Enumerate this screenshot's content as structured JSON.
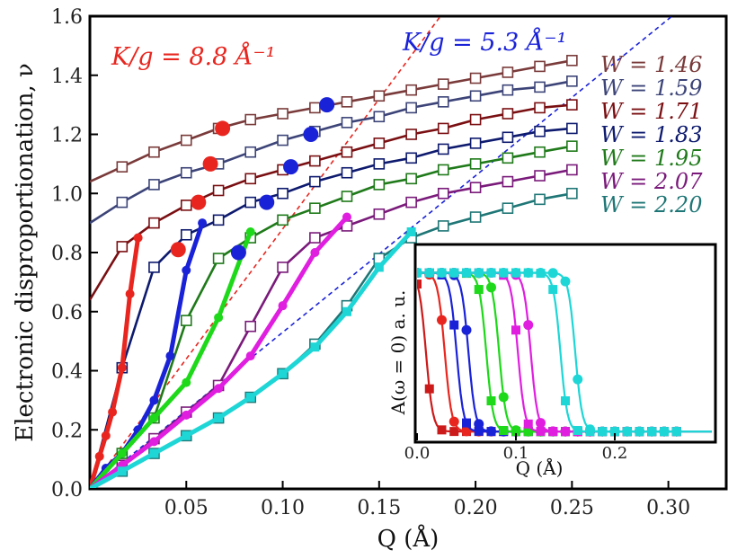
{
  "chart_data": [
    {
      "type": "line",
      "ylabel": "Electronic disproportionation, ν",
      "xlabel": "Q (Å)",
      "xlim": [
        0.0,
        0.33
      ],
      "ylim": [
        0.0,
        1.6
      ],
      "xticks": [
        0.05,
        0.1,
        0.15,
        0.2,
        0.25,
        0.3
      ],
      "xtick_labels": [
        "0.05",
        "0.10",
        "0.15",
        "0.20",
        "0.25",
        "0.30"
      ],
      "yticks": [
        0.0,
        0.2,
        0.4,
        0.6,
        0.8,
        1.0,
        1.2,
        1.4,
        1.6
      ],
      "ytick_labels": [
        "0.0",
        "0.2",
        "0.4",
        "0.6",
        "0.8",
        "1.0",
        "1.2",
        "1.4",
        "1.6"
      ],
      "annotations": [
        {
          "text": "K/g = 8.8 Å⁻¹",
          "color": "#e8261f",
          "slope": 8.8
        },
        {
          "text": "K/g = 5.3 Å⁻¹",
          "color": "#1a22d8",
          "slope": 5.3
        }
      ],
      "series": [
        {
          "name": "W = 1.46",
          "color": "#7a3a3a",
          "marker": "open-square",
          "x": [
            0.0,
            0.0167,
            0.0333,
            0.05,
            0.0667,
            0.0833,
            0.1,
            0.1167,
            0.1333,
            0.15,
            0.1667,
            0.1833,
            0.2,
            0.2167,
            0.2333,
            0.25
          ],
          "y": [
            1.04,
            1.09,
            1.14,
            1.18,
            1.22,
            1.25,
            1.27,
            1.29,
            1.31,
            1.33,
            1.35,
            1.37,
            1.39,
            1.41,
            1.43,
            1.45
          ]
        },
        {
          "name": "W = 1.59",
          "color": "#3c4478",
          "marker": "open-square",
          "x": [
            0.0,
            0.0167,
            0.0333,
            0.05,
            0.0667,
            0.0833,
            0.1,
            0.1167,
            0.1333,
            0.15,
            0.1667,
            0.1833,
            0.2,
            0.2167,
            0.2333,
            0.25
          ],
          "y": [
            0.9,
            0.97,
            1.03,
            1.07,
            1.1,
            1.14,
            1.18,
            1.21,
            1.24,
            1.26,
            1.29,
            1.31,
            1.33,
            1.35,
            1.36,
            1.38
          ]
        },
        {
          "name": "W = 1.71",
          "color": "#7a0f12",
          "marker": "open-square",
          "x": [
            0.0,
            0.0167,
            0.0333,
            0.05,
            0.0667,
            0.0833,
            0.1,
            0.1167,
            0.1333,
            0.15,
            0.1667,
            0.1833,
            0.2,
            0.2167,
            0.2333,
            0.25
          ],
          "y": [
            0.64,
            0.82,
            0.9,
            0.96,
            1.01,
            1.05,
            1.08,
            1.11,
            1.14,
            1.17,
            1.2,
            1.22,
            1.25,
            1.27,
            1.29,
            1.3
          ]
        },
        {
          "name": "W = 1.83",
          "color": "#0d1a6e",
          "marker": "open-square",
          "x": [
            0.0,
            0.0167,
            0.0333,
            0.05,
            0.0667,
            0.0833,
            0.1,
            0.1167,
            0.1333,
            0.15,
            0.1667,
            0.1833,
            0.2,
            0.2167,
            0.2333,
            0.25
          ],
          "y": [
            0.0,
            0.41,
            0.75,
            0.86,
            0.91,
            0.97,
            1.0,
            1.04,
            1.07,
            1.1,
            1.12,
            1.15,
            1.17,
            1.19,
            1.21,
            1.22
          ]
        },
        {
          "name": "W = 1.95",
          "color": "#1f7a1a",
          "marker": "open-square",
          "x": [
            0.0,
            0.0167,
            0.0333,
            0.05,
            0.0667,
            0.0833,
            0.1,
            0.1167,
            0.1333,
            0.15,
            0.1667,
            0.1833,
            0.2,
            0.2167,
            0.2333,
            0.25
          ],
          "y": [
            0.0,
            0.12,
            0.24,
            0.57,
            0.78,
            0.85,
            0.91,
            0.95,
            0.99,
            1.03,
            1.05,
            1.08,
            1.1,
            1.12,
            1.14,
            1.16
          ]
        },
        {
          "name": "W = 2.07",
          "color": "#7a1a7a",
          "marker": "open-square",
          "x": [
            0.0,
            0.0167,
            0.0333,
            0.05,
            0.0667,
            0.0833,
            0.1,
            0.1167,
            0.1333,
            0.15,
            0.1667,
            0.1833,
            0.2,
            0.2167,
            0.2333,
            0.25
          ],
          "y": [
            0.0,
            0.08,
            0.17,
            0.26,
            0.35,
            0.55,
            0.75,
            0.85,
            0.89,
            0.93,
            0.97,
            1.0,
            1.02,
            1.04,
            1.06,
            1.08
          ]
        },
        {
          "name": "W = 2.20",
          "color": "#1f7676",
          "marker": "open-square",
          "x": [
            0.0,
            0.0167,
            0.0333,
            0.05,
            0.0667,
            0.0833,
            0.1,
            0.1167,
            0.1333,
            0.15,
            0.1667,
            0.1833,
            0.2,
            0.2167,
            0.2333,
            0.25
          ],
          "y": [
            0.0,
            0.06,
            0.12,
            0.18,
            0.24,
            0.31,
            0.39,
            0.49,
            0.62,
            0.78,
            0.85,
            0.89,
            0.92,
            0.95,
            0.98,
            1.0
          ]
        },
        {
          "name": "",
          "color": "#e8261f",
          "marker": "filled-circle",
          "x": [
            0.0,
            0.005,
            0.0083,
            0.0117,
            0.0167,
            0.0208,
            0.025
          ],
          "y": [
            0.0,
            0.11,
            0.18,
            0.26,
            0.41,
            0.66,
            0.85
          ]
        },
        {
          "name": "",
          "color": "#1a22d8",
          "marker": "filled-circle",
          "x": [
            0.0,
            0.0083,
            0.0167,
            0.025,
            0.0333,
            0.0417,
            0.05,
            0.0583
          ],
          "y": [
            0.0,
            0.07,
            0.12,
            0.2,
            0.3,
            0.45,
            0.74,
            0.9
          ]
        },
        {
          "name": "",
          "color": "#1ed81a",
          "marker": "filled-circle",
          "x": [
            0.0,
            0.0167,
            0.0333,
            0.05,
            0.0667,
            0.0833
          ],
          "y": [
            0.0,
            0.12,
            0.24,
            0.36,
            0.58,
            0.87
          ]
        },
        {
          "name": "",
          "color": "#e01ee0",
          "marker": "filled-circle",
          "x": [
            0.0,
            0.0167,
            0.0333,
            0.05,
            0.0667,
            0.0833,
            0.1,
            0.1167,
            0.1333
          ],
          "y": [
            0.0,
            0.08,
            0.16,
            0.25,
            0.34,
            0.45,
            0.62,
            0.8,
            0.92
          ]
        },
        {
          "name": "",
          "color": "#1ed6d6",
          "marker": "filled-square",
          "x": [
            0.0,
            0.0167,
            0.0333,
            0.05,
            0.0667,
            0.0833,
            0.1,
            0.1167,
            0.1333,
            0.15,
            0.1667
          ],
          "y": [
            0.0,
            0.06,
            0.12,
            0.18,
            0.24,
            0.31,
            0.39,
            0.48,
            0.6,
            0.75,
            0.87
          ]
        }
      ],
      "transition_points": [
        {
          "color": "#e8261f",
          "x": [
            0.0458,
            0.0563,
            0.0625,
            0.0688
          ],
          "y": [
            0.81,
            0.97,
            1.1,
            1.22
          ]
        },
        {
          "color": "#1a22d8",
          "x": [
            0.0771,
            0.0917,
            0.1042,
            0.1146,
            0.1229
          ],
          "y": [
            0.8,
            0.97,
            1.09,
            1.2,
            1.3
          ]
        }
      ]
    },
    {
      "type": "line",
      "ylabel": "A(ω = 0) a. u.",
      "xlabel": "Q (Å)",
      "xlim": [
        0.0,
        0.3
      ],
      "ylim": [
        0.0,
        1.0
      ],
      "xticks": [
        0.0,
        0.1,
        0.2
      ],
      "xtick_labels": [
        "0.0",
        "0.1",
        "0.2"
      ],
      "series": [
        {
          "color": "#cc1a1a",
          "q0": 0.009,
          "marker": "filled-square"
        },
        {
          "color": "#e8261f",
          "q0": 0.028,
          "marker": "filled-circle"
        },
        {
          "color": "#1a22d8",
          "q0": 0.04,
          "marker": "filled-square"
        },
        {
          "color": "#1a22d8",
          "q0": 0.052,
          "marker": "filled-circle"
        },
        {
          "color": "#1ed81a",
          "q0": 0.07,
          "marker": "filled-square"
        },
        {
          "color": "#1ed81a",
          "q0": 0.083,
          "marker": "filled-circle"
        },
        {
          "color": "#e01ee0",
          "q0": 0.102,
          "marker": "filled-square"
        },
        {
          "color": "#e01ee0",
          "q0": 0.115,
          "marker": "filled-circle"
        },
        {
          "color": "#1ed6d6",
          "q0": 0.145,
          "marker": "filled-square"
        },
        {
          "color": "#1ed6d6",
          "q0": 0.16,
          "marker": "filled-circle"
        }
      ]
    }
  ]
}
